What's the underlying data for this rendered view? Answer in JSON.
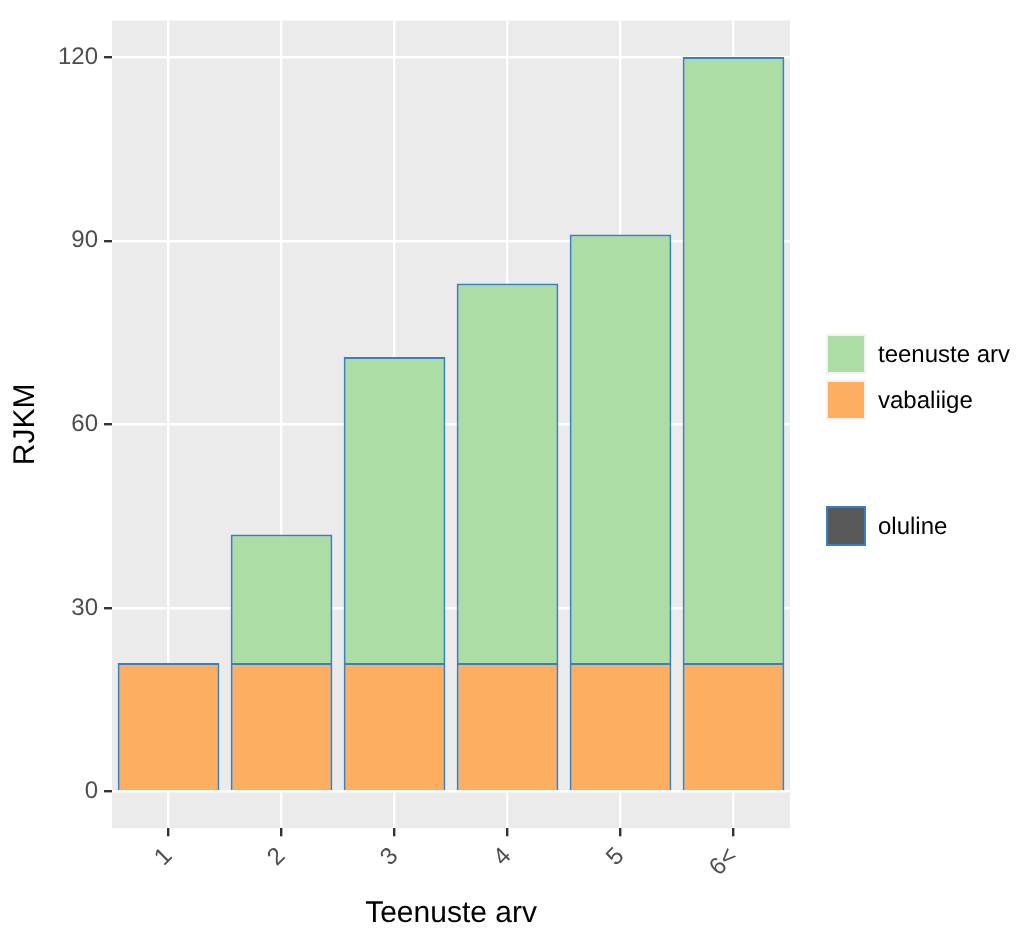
{
  "chart_data": {
    "type": "bar",
    "xlabel": "Teenuste arv",
    "ylabel": "RJKM",
    "categories": [
      "1",
      "2",
      "3",
      "4",
      "5",
      "6<"
    ],
    "stacked": true,
    "series": [
      {
        "name": "vabaliige",
        "color": "#fdae61",
        "values": [
          21,
          21,
          21,
          21,
          21,
          21
        ]
      },
      {
        "name": "teenuste arv",
        "color": "#abdda4",
        "values": [
          0,
          21,
          50,
          62,
          70,
          99
        ]
      },
      {
        "name": "oluline",
        "color": "#595959",
        "values": [
          null,
          null,
          null,
          null,
          null,
          null
        ]
      }
    ],
    "ylim": [
      -6,
      126
    ],
    "yticks": [
      0,
      30,
      60,
      90,
      120
    ],
    "grid": true,
    "legend": "right"
  }
}
